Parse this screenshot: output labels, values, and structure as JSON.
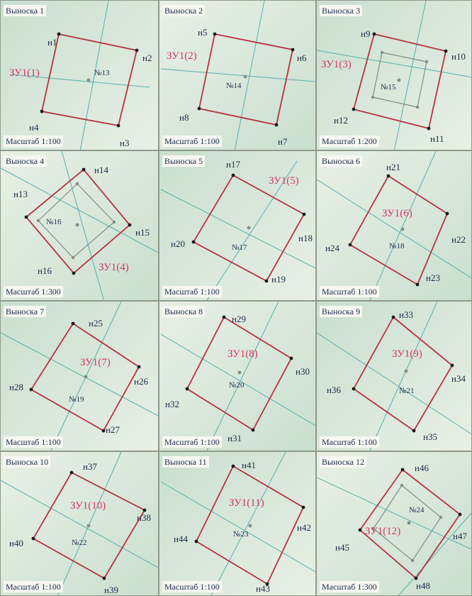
{
  "callouts": [
    {
      "title": "Выноска 1",
      "scale": "Масштаб 1:100",
      "vertices": [
        "н1",
        "н2",
        "н3",
        "н4"
      ],
      "parcel": "ЗУ1(1)",
      "object": "№13"
    },
    {
      "title": "Выноска 2",
      "scale": "Масштаб 1:100",
      "vertices": [
        "н5",
        "н6",
        "н7",
        "н8"
      ],
      "parcel": "ЗУ1(2)",
      "object": "№14"
    },
    {
      "title": "Выноска 3",
      "scale": "Масштаб 1:200",
      "vertices": [
        "н9",
        "н10",
        "н11",
        "н12"
      ],
      "parcel": "ЗУ1(3)",
      "object": "№15"
    },
    {
      "title": "Выноска 4",
      "scale": "Масштаб 1:300",
      "vertices": [
        "н14",
        "н15",
        "н16",
        "н13"
      ],
      "parcel": "ЗУ1(4)",
      "object": "№16"
    },
    {
      "title": "Выноска 5",
      "scale": "Масштаб 1:100",
      "vertices": [
        "н17",
        "н18",
        "н19",
        "н20"
      ],
      "parcel": "ЗУ1(5)",
      "object": "№17"
    },
    {
      "title": "Выноска 6",
      "scale": "Масштаб 1:100",
      "vertices": [
        "н21",
        "н22",
        "н23",
        "н24"
      ],
      "parcel": "ЗУ1(6)",
      "object": "№18"
    },
    {
      "title": "Выноска 7",
      "scale": "Масштаб 1:100",
      "vertices": [
        "н25",
        "н26",
        "н27",
        "н28"
      ],
      "parcel": "ЗУ1(7)",
      "object": "№19"
    },
    {
      "title": "Выноска 8",
      "scale": "Масштаб 1:100",
      "vertices": [
        "н29",
        "н30",
        "н31",
        "н32"
      ],
      "parcel": "ЗУ1(8)",
      "object": "№20"
    },
    {
      "title": "Выноска 9",
      "scale": "Масштаб 1:100",
      "vertices": [
        "н33",
        "н34",
        "н35",
        "н36"
      ],
      "parcel": "ЗУ1(9)",
      "object": "№21"
    },
    {
      "title": "Выноска 10",
      "scale": "Масштаб 1:100",
      "vertices": [
        "н37",
        "н38",
        "н39",
        "н40"
      ],
      "parcel": "ЗУ1(10)",
      "object": "№22"
    },
    {
      "title": "Выноска 11",
      "scale": "Масштаб 1:100",
      "vertices": [
        "н41",
        "н42",
        "н43",
        "н44"
      ],
      "parcel": "ЗУ1(11)",
      "object": "№23"
    },
    {
      "title": "Выноска 12",
      "scale": "Масштаб 1:300",
      "vertices": [
        "н46",
        "н47",
        "н48",
        "н45"
      ],
      "parcel": "ЗУ1(12)",
      "object": "№24"
    }
  ],
  "colors": {
    "boundary": "#b8323f",
    "object_outline": "#7f8f86",
    "line": "#57aeb0",
    "parcel_label": "#d8336a",
    "text": "#1b2b4a",
    "map_green": "#c9dfcf",
    "map_light": "#e9f0e6"
  }
}
